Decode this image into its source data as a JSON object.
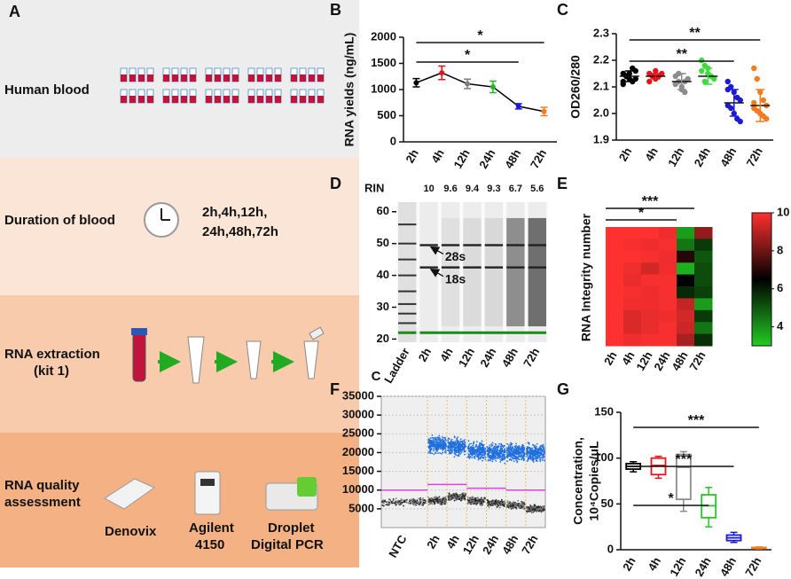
{
  "panel_a": {
    "label": "A",
    "human_blood": "Human blood",
    "duration": "Duration of blood",
    "durations": [
      "2h,4h,12h,",
      "24h,48h,72h"
    ],
    "extraction": [
      "RNA extraction",
      "(kit 1)"
    ],
    "assessment": [
      "RNA quality",
      "assessment"
    ],
    "instruments": [
      [
        "Denovix"
      ],
      [
        "Agilent",
        "4150"
      ],
      [
        "Droplet",
        "Digital PCR"
      ]
    ]
  },
  "chart_data": [
    {
      "type": "line",
      "label": "B",
      "ylabel": "RNA yields (ng/mL)",
      "categories": [
        "2h",
        "4h",
        "12h",
        "24h",
        "48h",
        "72h"
      ],
      "values": [
        1130,
        1320,
        1110,
        1050,
        680,
        580
      ],
      "errors": [
        80,
        130,
        90,
        110,
        50,
        80
      ],
      "colors": [
        "#000000",
        "#e8141c",
        "#7f7f7f",
        "#27b327",
        "#1b1bd6",
        "#f47c20"
      ],
      "line_color": "#000000",
      "ylim": [
        0,
        2000
      ],
      "yticks": [
        0,
        500,
        1000,
        1500,
        2000
      ],
      "significance": [
        {
          "from": "2h",
          "to": "72h",
          "label": "*"
        },
        {
          "from": "2h",
          "to": "48h",
          "label": "*"
        }
      ]
    },
    {
      "type": "strip",
      "label": "C",
      "ylabel": "OD260/280",
      "categories": [
        "2h",
        "4h",
        "12h",
        "24h",
        "48h",
        "72h"
      ],
      "points": [
        [
          2.15,
          2.14,
          2.13,
          2.12,
          2.16,
          2.11,
          2.14,
          2.15,
          2.17,
          2.13,
          2.12
        ],
        [
          2.15,
          2.14,
          2.13,
          2.14,
          2.15,
          2.12,
          2.14,
          2.16
        ],
        [
          2.14,
          2.12,
          2.1,
          2.08,
          2.13,
          2.11,
          2.15,
          2.09,
          2.12
        ],
        [
          2.2,
          2.18,
          2.15,
          2.14,
          2.13,
          2.16,
          2.12,
          2.17,
          2.14
        ],
        [
          2.12,
          2.1,
          2.08,
          2.06,
          2.05,
          2.03,
          2.02,
          2.0,
          1.98,
          1.97,
          2.09
        ],
        [
          2.17,
          2.13,
          2.08,
          2.05,
          2.03,
          2.02,
          2.01,
          2.0,
          1.99,
          1.98,
          2.04
        ]
      ],
      "means": [
        2.14,
        2.14,
        2.12,
        2.14,
        2.04,
        2.03
      ],
      "sd": [
        0.02,
        0.01,
        0.03,
        0.03,
        0.05,
        0.06
      ],
      "colors": [
        "#000000",
        "#e8141c",
        "#8c8c8c",
        "#3fdc3f",
        "#1b1bd6",
        "#f47c20"
      ],
      "ylim": [
        1.9,
        2.3
      ],
      "yticks": [
        1.9,
        {
          "value": 2.0,
          "label": "2.0"
        },
        2.1,
        2.2,
        2.3
      ],
      "significance": [
        {
          "from": "2h",
          "to": "72h",
          "label": "**"
        },
        {
          "from": "2h",
          "to": "48h",
          "label": "**"
        }
      ]
    },
    {
      "type": "gel",
      "label": "D",
      "rin_label": "RIN",
      "categories": [
        "Ladder",
        "2h",
        "4h",
        "12h",
        "24h",
        "48h",
        "72h"
      ],
      "rin": [
        10,
        9.6,
        9.4,
        9.3,
        6.7,
        5.6
      ],
      "ylim": [
        19,
        63
      ],
      "yticks": [
        20,
        30,
        40,
        50,
        60
      ],
      "ladder_bands": [
        56,
        50,
        45,
        40,
        35,
        31,
        28,
        25
      ],
      "bands": [
        {
          "label": "28s",
          "position": 49.5
        },
        {
          "label": "18s",
          "position": 42.5
        }
      ],
      "marker_position": 22
    },
    {
      "type": "heatmap",
      "label": "E",
      "ylabel": "RNA Integrity number",
      "categories": [
        "2h",
        "4h",
        "12h",
        "24h",
        "48h",
        "72h"
      ],
      "values": [
        [
          10,
          10,
          10,
          9.8,
          3.8,
          8.5
        ],
        [
          10,
          9.9,
          9.8,
          9.9,
          4.5,
          5.5
        ],
        [
          10,
          10,
          9.9,
          9.8,
          7,
          5
        ],
        [
          10,
          9.8,
          9.4,
          9.8,
          3.5,
          5.2
        ],
        [
          10,
          9.7,
          9.9,
          9.9,
          6.5,
          5.2
        ],
        [
          10,
          9.9,
          9.8,
          9.9,
          5.8,
          5.4
        ],
        [
          10,
          9.8,
          9.8,
          9.9,
          9.2,
          3.8
        ],
        [
          10,
          9.5,
          9.7,
          9.8,
          9.4,
          5.5
        ],
        [
          10,
          9.5,
          9.7,
          9.9,
          9.3,
          4.5
        ],
        [
          10,
          9.8,
          9.9,
          9.9,
          8.8,
          5.7
        ]
      ],
      "clim": [
        3,
        10
      ],
      "cticks": [
        4,
        6,
        8,
        10
      ],
      "colormap": [
        "#22cc22",
        "#000000",
        "#ff3030"
      ],
      "significance": [
        {
          "from": "2h",
          "to": "48h",
          "label": "***"
        },
        {
          "from": "2h",
          "to": "24h",
          "label": "*"
        }
      ]
    },
    {
      "type": "scatter",
      "label": "F",
      "annotation": "C",
      "categories": [
        "NTC",
        "2h",
        "4h",
        "12h",
        "24h",
        "48h",
        "72h"
      ],
      "positive_level": [
        null,
        22000,
        21500,
        20500,
        20000,
        20000,
        20000
      ],
      "negative_level": [
        6800,
        7200,
        8200,
        7000,
        6500,
        6000,
        5000
      ],
      "threshold": [
        10000,
        11500,
        11500,
        10500,
        10500,
        10000,
        10000
      ],
      "ylim": [
        0,
        35000
      ],
      "yticks": [
        5000,
        10000,
        15000,
        20000,
        25000,
        30000,
        35000
      ]
    },
    {
      "type": "box",
      "label": "G",
      "ylabel": [
        "Concentration,",
        "10⁴Copies/μL"
      ],
      "categories": [
        "2h",
        "4h",
        "12h",
        "24h",
        "48h",
        "72h"
      ],
      "boxes": [
        {
          "min": 85,
          "q1": 88,
          "median": 91,
          "q3": 94,
          "max": 96
        },
        {
          "min": 78,
          "q1": 82,
          "median": 92,
          "q3": 100,
          "max": 102
        },
        {
          "min": 42,
          "q1": 55,
          "median": 90,
          "q3": 104,
          "max": 107
        },
        {
          "min": 25,
          "q1": 35,
          "median": 48,
          "q3": 60,
          "max": 68
        },
        {
          "min": 8,
          "q1": 10,
          "median": 13,
          "q3": 16,
          "max": 19
        },
        {
          "min": 1,
          "q1": 1.5,
          "median": 2,
          "q3": 2.5,
          "max": 3
        }
      ],
      "colors": [
        "#000000",
        "#e8141c",
        "#8c8c8c",
        "#27c427",
        "#1b1bd6",
        "#f47c20"
      ],
      "ylim": [
        0,
        150
      ],
      "yticks": [
        0,
        50,
        100,
        150
      ],
      "significance": [
        {
          "from": "2h",
          "to": "72h",
          "label": "***"
        },
        {
          "from": "2h",
          "to": "48h",
          "label": "***"
        },
        {
          "from": "2h",
          "to": "24h",
          "label": "*"
        }
      ]
    }
  ]
}
